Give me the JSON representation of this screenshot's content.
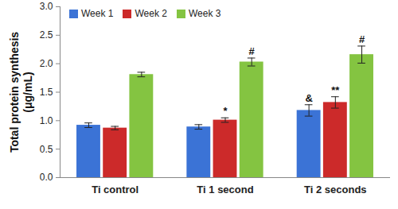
{
  "chart_data": {
    "type": "bar",
    "categories": [
      "Ti control",
      "Ti 1 second",
      "Ti 2 seconds"
    ],
    "ylabel": [
      "Total protein synthesis",
      "(μg/mL)"
    ],
    "series": [
      {
        "name": "Week 1",
        "color": "#3b73d6",
        "values": [
          0.92,
          0.89,
          1.18
        ],
        "errors": [
          0.04,
          0.04,
          0.1
        ],
        "significance": [
          null,
          null,
          "&"
        ]
      },
      {
        "name": "Week 2",
        "color": "#cc2a2a",
        "values": [
          0.87,
          1.01,
          1.32
        ],
        "errors": [
          0.03,
          0.04,
          0.1
        ],
        "significance": [
          null,
          "*",
          "**"
        ]
      },
      {
        "name": "Week 3",
        "color": "#84c441",
        "values": [
          1.81,
          2.03,
          2.16
        ],
        "errors": [
          0.04,
          0.07,
          0.15
        ],
        "significance": [
          null,
          "#",
          "#"
        ]
      }
    ],
    "ylim": [
      0,
      3
    ],
    "yticks": [
      0,
      0.5,
      1,
      1.5,
      2,
      2.5,
      3
    ],
    "legend": "top-left",
    "grid": false
  }
}
